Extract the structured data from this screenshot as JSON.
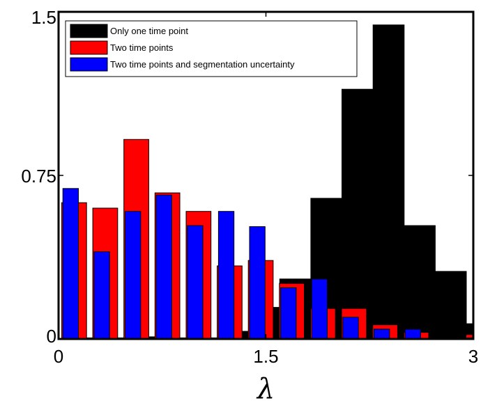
{
  "chart_data": {
    "type": "bar",
    "xlabel": "λ",
    "ylabel": "",
    "xlim": [
      0,
      3
    ],
    "ylim": [
      0,
      1.5
    ],
    "xticks": [
      {
        "value": 0,
        "label": "0"
      },
      {
        "value": 1.5,
        "label": "1.5"
      },
      {
        "value": 3,
        "label": "3"
      }
    ],
    "yticks": [
      {
        "value": 0,
        "label": "0"
      },
      {
        "value": 0.75,
        "label": "0.75"
      },
      {
        "value": 1.5,
        "label": "1.5"
      }
    ],
    "bin_width": 0.225,
    "bin_centers": [
      0.1125,
      0.3375,
      0.5625,
      0.7875,
      1.0125,
      1.2375,
      1.4625,
      1.6875,
      1.9125,
      2.1375,
      2.3625,
      2.5875,
      2.8125,
      3.0375
    ],
    "legend_position": "top-left",
    "grid": false,
    "series": [
      {
        "name": "Only one time point",
        "color": "#000000",
        "values": [
          0.005,
          0.005,
          0.01,
          0.005,
          0.005,
          0.035,
          0.145,
          0.275,
          0.645,
          1.145,
          1.44,
          0.52,
          0.31,
          0.07
        ]
      },
      {
        "name": "Two time points",
        "color": "#ff0000",
        "values": [
          0.625,
          0.6,
          0.915,
          0.67,
          0.585,
          0.335,
          0.36,
          0.255,
          0.14,
          0.14,
          0.065,
          0.03,
          0.005,
          0.02
        ]
      },
      {
        "name": "Two time points and segmentation uncertainty",
        "color": "#0000ff",
        "values": [
          0.69,
          0.4,
          0.585,
          0.66,
          0.52,
          0.585,
          0.515,
          0.235,
          0.275,
          0.1,
          0.045,
          0.045,
          0.005,
          0.005
        ]
      }
    ]
  }
}
